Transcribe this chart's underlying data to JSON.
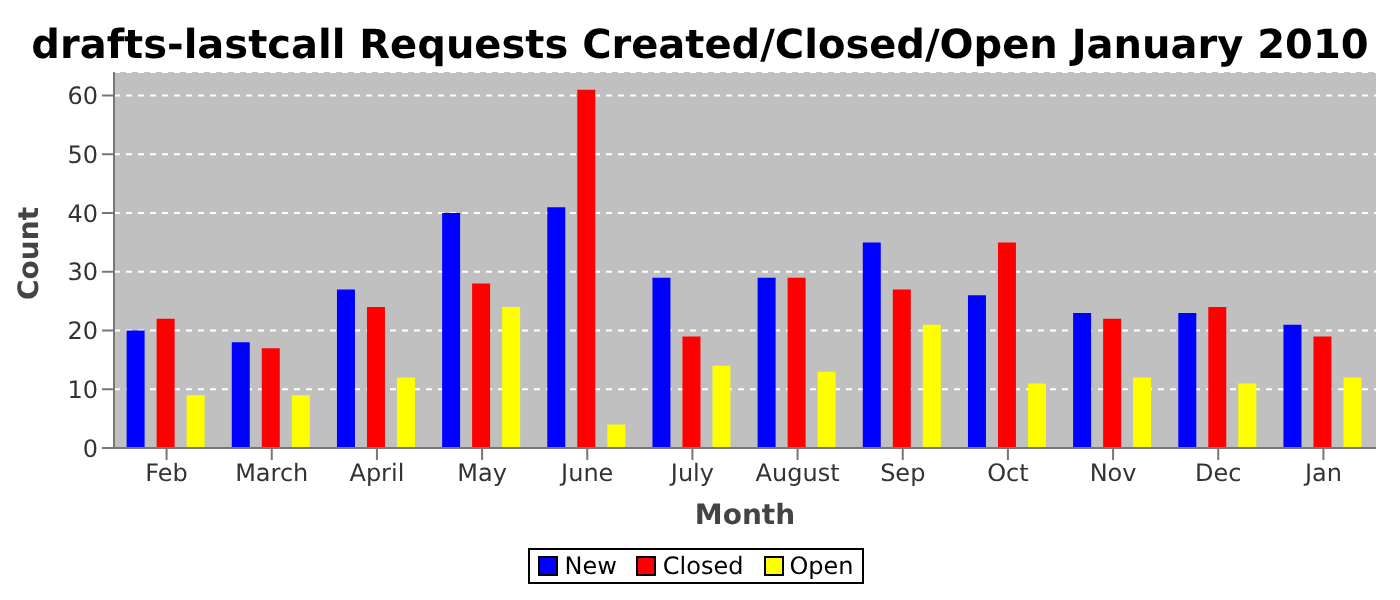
{
  "chart_data": {
    "type": "bar",
    "title": "drafts-lastcall Requests Created/Closed/Open January 2010",
    "xlabel": "Month",
    "ylabel": "Count",
    "categories": [
      "Feb",
      "March",
      "April",
      "May",
      "June",
      "July",
      "August",
      "Sep",
      "Oct",
      "Nov",
      "Dec",
      "Jan"
    ],
    "series": [
      {
        "name": "New",
        "color": "#0000ff",
        "values": [
          20,
          18,
          27,
          40,
          41,
          29,
          29,
          35,
          26,
          23,
          23,
          21
        ]
      },
      {
        "name": "Closed",
        "color": "#ff0000",
        "values": [
          22,
          17,
          24,
          28,
          61,
          19,
          29,
          27,
          35,
          22,
          24,
          19
        ]
      },
      {
        "name": "Open",
        "color": "#ffff00",
        "values": [
          9,
          9,
          12,
          24,
          4,
          14,
          13,
          21,
          11,
          12,
          11,
          12
        ]
      }
    ],
    "ylim": [
      0,
      64
    ],
    "yticks": [
      0,
      10,
      20,
      30,
      40,
      50,
      60
    ],
    "grid": "y",
    "legend": "bottom"
  }
}
